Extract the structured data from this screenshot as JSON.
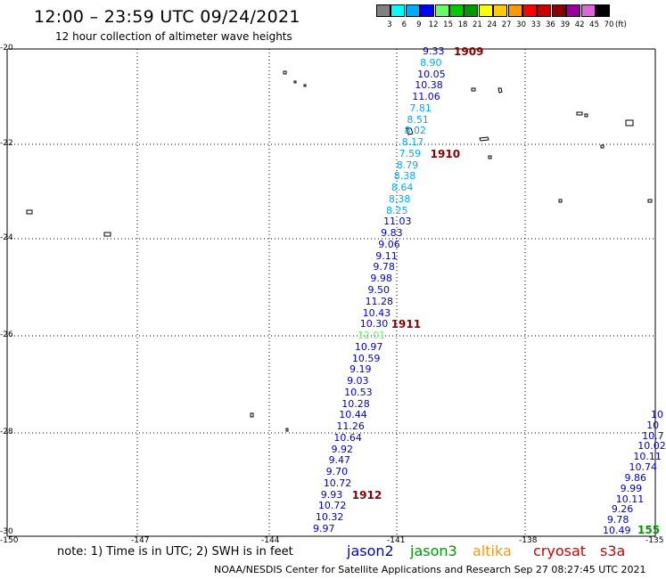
{
  "header": {
    "title": "12:00 – 23:59 UTC 09/24/2021",
    "subtitle": "12 hour collection of altimeter wave heights"
  },
  "scale": {
    "unit": "(ft)",
    "entries": [
      {
        "label": "3",
        "color": "#808080"
      },
      {
        "label": "6",
        "color": "#00ffff"
      },
      {
        "label": "9",
        "color": "#00aaff"
      },
      {
        "label": "12",
        "color": "#0000ff"
      },
      {
        "label": "15",
        "color": "#66ff66"
      },
      {
        "label": "18",
        "color": "#00cc00"
      },
      {
        "label": "21",
        "color": "#009900"
      },
      {
        "label": "24",
        "color": "#ffff00"
      },
      {
        "label": "27",
        "color": "#ffcc00"
      },
      {
        "label": "30",
        "color": "#ff9900"
      },
      {
        "label": "33",
        "color": "#ff0000"
      },
      {
        "label": "36",
        "color": "#cc0000"
      },
      {
        "label": "39",
        "color": "#880000"
      },
      {
        "label": "42",
        "color": "#990099"
      },
      {
        "label": "45",
        "color": "#dd66dd"
      },
      {
        "label": "70",
        "color": "#000000"
      }
    ]
  },
  "axes": {
    "lat_labels": [
      "-20",
      "-22",
      "-24",
      "-26",
      "-28",
      "-30"
    ],
    "lon_labels": [
      "-150",
      "-147",
      "-144",
      "-141",
      "-138",
      "-135"
    ]
  },
  "time_markers": [
    "1909",
    "1910",
    "1911",
    "1912"
  ],
  "wave_heights": {
    "track_main": [
      "9.33",
      "8.90",
      "10.05",
      "10.38",
      "11.06",
      "7.81",
      "8.51",
      "8.02",
      "8.17",
      "7.59",
      "8.79",
      "8.38",
      "8.64",
      "8.38",
      "8.25",
      "11.03",
      "9.83",
      "9.06",
      "9.11",
      "9.78",
      "9.98",
      "9.50",
      "11.28",
      "10.43",
      "10.30",
      "12.01",
      "10.97",
      "10.59",
      "9.19",
      "9.03",
      "10.53",
      "10.28",
      "10.44",
      "11.26",
      "10.64",
      "9.92",
      "9.47",
      "9.70",
      "10.72",
      "9.93",
      "10.72",
      "10.32",
      "9.97"
    ],
    "track_east": [
      "10",
      "10",
      "10.7",
      "10.02",
      "10.11",
      "10.74",
      "9.86",
      "9.99",
      "10.11",
      "9.26",
      "9.78",
      "10.49"
    ],
    "partial_marker": "155"
  },
  "footer": {
    "note": "note:  1) Time is in UTC;  2) SWH is in feet",
    "satellites": [
      {
        "name": "jason2",
        "color": "#0000cc"
      },
      {
        "name": "jason3",
        "color": "#009900"
      },
      {
        "name": "altika",
        "color": "#ff9900"
      },
      {
        "name": "cryosat",
        "color": "#cc0000"
      },
      {
        "name": "s3a",
        "color": "#cc0000"
      }
    ],
    "credit": "NOAA/NESDIS Center for Satellite Applications and Research   Sep 27 08:27:45 UTC 2021"
  }
}
